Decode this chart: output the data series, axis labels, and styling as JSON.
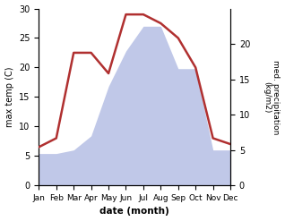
{
  "months": [
    "Jan",
    "Feb",
    "Mar",
    "Apr",
    "May",
    "Jun",
    "Jul",
    "Aug",
    "Sep",
    "Oct",
    "Nov",
    "Dec"
  ],
  "temp": [
    6.5,
    8.0,
    22.5,
    22.5,
    19.0,
    29.0,
    29.0,
    27.5,
    25.0,
    20.0,
    8.0,
    7.0
  ],
  "precip": [
    4.5,
    4.5,
    5.0,
    7.0,
    14.0,
    19.0,
    22.5,
    22.5,
    16.5,
    16.5,
    5.0,
    5.0
  ],
  "temp_color": "#b03030",
  "precip_color": "#c0c8e8",
  "ylim_temp": [
    0,
    30
  ],
  "ylim_precip": [
    0,
    25
  ],
  "right_yticks": [
    0,
    5,
    10,
    15,
    20
  ],
  "right_yticklabels": [
    "0",
    "5",
    "10",
    "15",
    "20"
  ],
  "left_yticks": [
    0,
    5,
    10,
    15,
    20,
    25,
    30
  ],
  "left_yticklabels": [
    "0",
    "5",
    "10",
    "15",
    "20",
    "25",
    "30"
  ],
  "ylabel_left": "max temp (C)",
  "ylabel_right": "med. precipitation\n(kg/m2)",
  "xlabel": "date (month)",
  "bg_color": "#ffffff"
}
